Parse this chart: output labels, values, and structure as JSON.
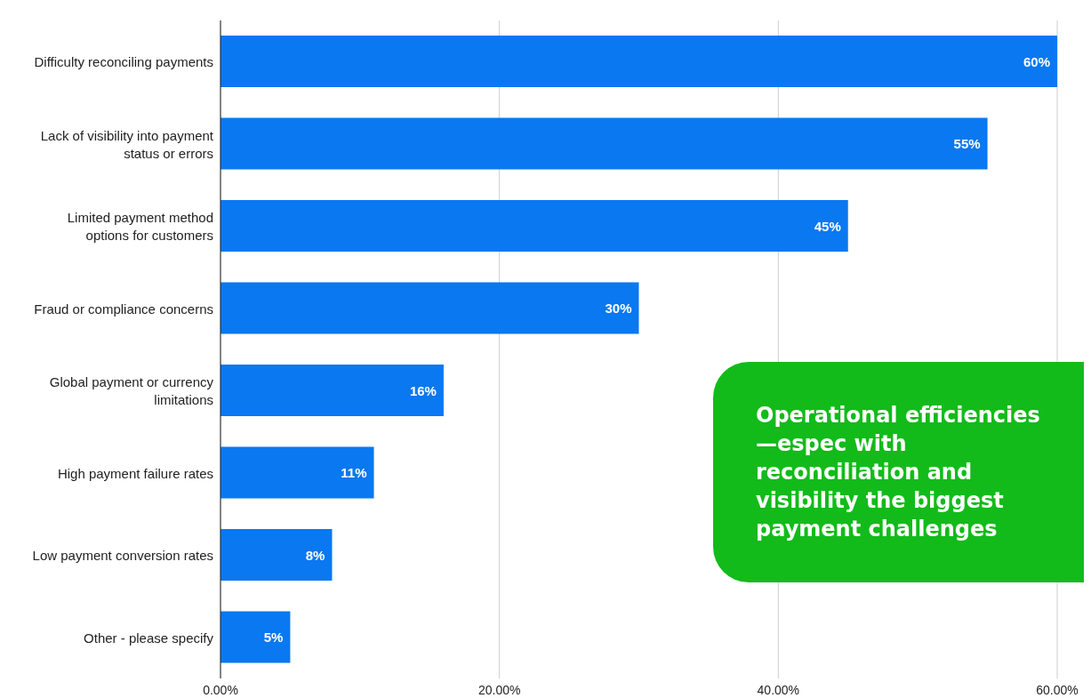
{
  "chart_data": {
    "type": "bar",
    "orientation": "horizontal",
    "categories": [
      "Difficulty reconciling payments",
      "Lack of visibility into payment status or errors",
      "Limited payment method options for customers",
      "Fraud or compliance concerns",
      "Global payment or currency limitations",
      "High payment failure rates",
      "Low payment conversion rates",
      "Other - please specify"
    ],
    "values": [
      60,
      55,
      45,
      30,
      16,
      11,
      8,
      5
    ],
    "value_labels": [
      "60%",
      "55%",
      "45%",
      "30%",
      "16%",
      "11%",
      "8%",
      "5%"
    ],
    "color": "#0a78f0",
    "xlim": [
      0,
      60
    ],
    "xticks": [
      {
        "value": 0,
        "label": "0.00%"
      },
      {
        "value": 20,
        "label": "20.00%"
      },
      {
        "value": 40,
        "label": "40.00%"
      },
      {
        "value": 60,
        "label": "60.00%"
      }
    ],
    "grid": "x",
    "annotations": [
      "Operational efficiencies—espec with reconciliation and visibility the biggest payment challenges"
    ]
  }
}
